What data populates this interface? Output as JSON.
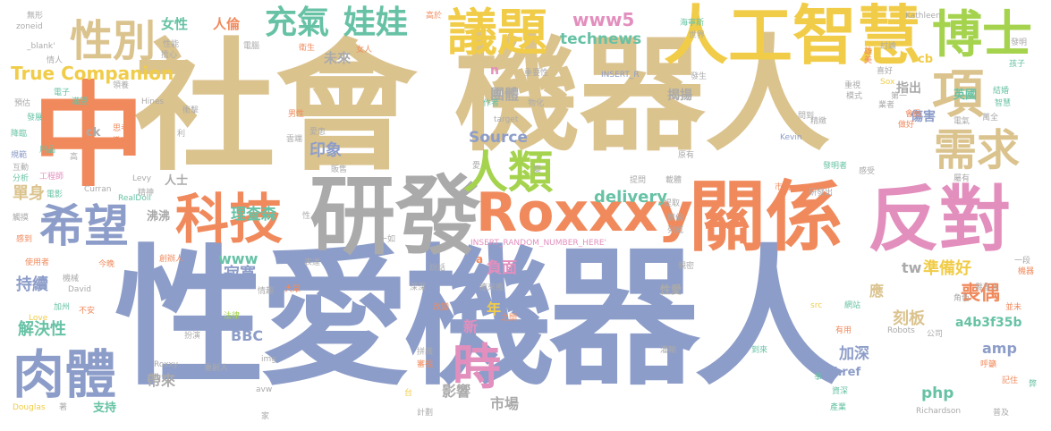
{
  "palette": {
    "tan": "#dbc38e",
    "orange": "#f08a5d",
    "blue": "#8d9dc9",
    "green": "#5cb891",
    "pink": "#e38fbe",
    "gray": "#aaaaaa",
    "yellow": "#f1cc48",
    "lime": "#a5d34e",
    "teal": "#67c2a5"
  },
  "words": [
    {
      "text": "性愛機器人",
      "color": "blue"
    },
    {
      "text": "社會",
      "color": "tan"
    },
    {
      "text": "機器人",
      "color": "tan"
    },
    {
      "text": "中",
      "color": "orange"
    },
    {
      "text": "研發",
      "color": "gray"
    },
    {
      "text": "關係",
      "color": "orange"
    },
    {
      "text": "反對",
      "color": "pink"
    },
    {
      "text": "人工智慧",
      "color": "yellow"
    },
    {
      "text": "Roxxxy",
      "color": "orange"
    },
    {
      "text": "科技",
      "color": "orange"
    },
    {
      "text": "肉體",
      "color": "blue"
    },
    {
      "text": "希望",
      "color": "blue"
    },
    {
      "text": "人類",
      "color": "lime"
    },
    {
      "text": "議題",
      "color": "yellow"
    },
    {
      "text": "博士",
      "color": "lime"
    },
    {
      "text": "需求",
      "color": "tan"
    },
    {
      "text": "性別",
      "color": "tan"
    },
    {
      "text": "充氣",
      "color": "teal"
    },
    {
      "text": "娃娃",
      "color": "teal"
    },
    {
      "text": "時",
      "color": "pink"
    },
    {
      "text": "項",
      "color": "tan"
    },
    {
      "text": "True Companion",
      "color": "yellow"
    },
    {
      "text": "www5",
      "color": "pink"
    },
    {
      "text": "technews",
      "color": "teal"
    },
    {
      "text": "Source",
      "color": "blue"
    },
    {
      "text": "印象",
      "color": "blue"
    },
    {
      "text": "單身",
      "color": "tan"
    },
    {
      "text": "寂寞",
      "color": "blue"
    },
    {
      "text": "理查森",
      "color": "teal"
    },
    {
      "text": "delivery",
      "color": "teal"
    },
    {
      "text": "解決性",
      "color": "teal"
    },
    {
      "text": "持續",
      "color": "blue"
    },
    {
      "text": "負面",
      "color": "pink"
    },
    {
      "text": "準備好",
      "color": "yellow"
    },
    {
      "text": "喪偶",
      "color": "orange"
    },
    {
      "text": "刻板",
      "color": "tan"
    },
    {
      "text": "amp",
      "color": "blue"
    },
    {
      "text": "加深",
      "color": "blue"
    },
    {
      "text": "影響",
      "color": "gray"
    },
    {
      "text": "市場",
      "color": "gray"
    },
    {
      "text": "php",
      "color": "teal"
    },
    {
      "text": "BBC",
      "color": "blue"
    },
    {
      "text": "帶來",
      "color": "gray"
    },
    {
      "text": "a4b3f35b",
      "color": "teal"
    },
    {
      "text": "www",
      "color": "teal"
    },
    {
      "text": "tw",
      "color": "gray"
    },
    {
      "text": "英國",
      "color": "teal"
    },
    {
      "text": "傷害",
      "color": "blue"
    },
    {
      "text": "團體",
      "color": "gray"
    },
    {
      "text": "指出",
      "color": "gray"
    },
    {
      "text": "未來",
      "color": "gray"
    },
    {
      "text": "女性",
      "color": "teal"
    },
    {
      "text": "人倫",
      "color": "orange"
    },
    {
      "text": "揭揚",
      "color": "gray"
    },
    {
      "text": "新",
      "color": "pink"
    },
    {
      "text": "年",
      "color": "yellow"
    },
    {
      "text": "應",
      "color": "tan"
    },
    {
      "text": "性愛",
      "color": "gray"
    },
    {
      "text": "href",
      "color": "blue"
    },
    {
      "text": "cb",
      "color": "yellow"
    },
    {
      "text": "沸沸",
      "color": "gray"
    },
    {
      "text": "人士",
      "color": "gray"
    },
    {
      "text": "ck",
      "color": "gray"
    },
    {
      "text": "支持",
      "color": "teal"
    },
    {
      "text": "n",
      "color": "pink"
    },
    {
      "text": "a",
      "color": "orange"
    },
    {
      "text": "Kathleen",
      "color": "gray"
    },
    {
      "text": "Richardson",
      "color": "gray"
    },
    {
      "text": "Douglas",
      "color": "yellow"
    },
    {
      "text": "David",
      "color": "gray"
    },
    {
      "text": "Levy",
      "color": "gray"
    },
    {
      "text": "Curran",
      "color": "gray"
    },
    {
      "text": "Hines",
      "color": "gray"
    },
    {
      "text": "RealDoll",
      "color": "teal"
    },
    {
      "text": "Roxxy",
      "color": "gray"
    },
    {
      "text": "Robots",
      "color": "gray"
    },
    {
      "text": "Love",
      "color": "yellow"
    },
    {
      "text": "Kevin",
      "color": "blue"
    },
    {
      "text": "Sox",
      "color": "yellow"
    },
    {
      "text": "target",
      "color": "gray"
    },
    {
      "text": "zoneid",
      "color": "gray"
    },
    {
      "text": "_blank'",
      "color": "gray"
    },
    {
      "text": "INSERT_R",
      "color": "blue"
    },
    {
      "text": "INSERT_RANDOM_NUMBER_HERE'",
      "color": "pink"
    },
    {
      "text": "img",
      "color": "gray"
    },
    {
      "text": "avw",
      "color": "gray"
    },
    {
      "text": "src",
      "color": "yellow"
    },
    {
      "text": "無形",
      "color": "gray"
    },
    {
      "text": "情人",
      "color": "gray"
    },
    {
      "text": "電子",
      "color": "teal"
    },
    {
      "text": "預估",
      "color": "gray"
    },
    {
      "text": "發展",
      "color": "teal"
    },
    {
      "text": "降臨",
      "color": "teal"
    },
    {
      "text": "規範",
      "color": "blue"
    },
    {
      "text": "互動",
      "color": "gray"
    },
    {
      "text": "分析",
      "color": "teal"
    },
    {
      "text": "工程師",
      "color": "pink"
    },
    {
      "text": "電影",
      "color": "teal"
    },
    {
      "text": "觸摸",
      "color": "gray"
    },
    {
      "text": "感到",
      "color": "orange"
    },
    {
      "text": "使用者",
      "color": "orange"
    },
    {
      "text": "機械",
      "color": "gray"
    },
    {
      "text": "加州",
      "color": "teal"
    },
    {
      "text": "不安",
      "color": "orange"
    },
    {
      "text": "今晚",
      "color": "orange"
    },
    {
      "text": "化",
      "color": "orange"
    },
    {
      "text": "用品",
      "color": "teal"
    },
    {
      "text": "滿望",
      "color": "teal"
    },
    {
      "text": "吵",
      "color": "orange"
    },
    {
      "text": "性能",
      "color": "gray"
    },
    {
      "text": "擔心",
      "color": "gray"
    },
    {
      "text": "電腦",
      "color": "gray"
    },
    {
      "text": "衛生",
      "color": "orange"
    },
    {
      "text": "女人",
      "color": "orange"
    },
    {
      "text": "重要性",
      "color": "gray"
    },
    {
      "text": "發生",
      "color": "gray"
    },
    {
      "text": "物化",
      "color": "gray"
    },
    {
      "text": "作者",
      "color": "teal"
    },
    {
      "text": "衝擊",
      "color": "gray"
    },
    {
      "text": "男性",
      "color": "orange"
    },
    {
      "text": "愛恵",
      "color": "gray"
    },
    {
      "text": "雲端",
      "color": "gray"
    },
    {
      "text": "提問",
      "color": "gray"
    },
    {
      "text": "載體",
      "color": "gray"
    },
    {
      "text": "市面",
      "color": "orange"
    },
    {
      "text": "研發出",
      "color": "gray"
    },
    {
      "text": "海寧斯",
      "color": "teal"
    },
    {
      "text": "世界",
      "color": "gray"
    },
    {
      "text": "高於",
      "color": "orange"
    },
    {
      "text": "討論",
      "color": "gray"
    },
    {
      "text": "孩子",
      "color": "teal"
    },
    {
      "text": "發明",
      "color": "gray"
    },
    {
      "text": "模式",
      "color": "gray"
    },
    {
      "text": "重視",
      "color": "gray"
    },
    {
      "text": "喜好",
      "color": "gray"
    },
    {
      "text": "業者",
      "color": "gray"
    },
    {
      "text": "第一",
      "color": "gray"
    },
    {
      "text": "結婚",
      "color": "teal"
    },
    {
      "text": "智慧",
      "color": "teal"
    },
    {
      "text": "問到",
      "color": "gray"
    },
    {
      "text": "精緻",
      "color": "gray"
    },
    {
      "text": "會員",
      "color": "orange"
    },
    {
      "text": "做好",
      "color": "orange"
    },
    {
      "text": "電氣",
      "color": "gray"
    },
    {
      "text": "萬全",
      "color": "gray"
    },
    {
      "text": "發明者",
      "color": "teal"
    },
    {
      "text": "感受",
      "color": "gray"
    },
    {
      "text": "屬有",
      "color": "gray"
    },
    {
      "text": "一段",
      "color": "gray"
    },
    {
      "text": "機器",
      "color": "orange"
    },
    {
      "text": "發言人",
      "color": "gray"
    },
    {
      "text": "角色",
      "color": "gray"
    },
    {
      "text": "並未",
      "color": "orange"
    },
    {
      "text": "公司",
      "color": "gray"
    },
    {
      "text": "網站",
      "color": "teal"
    },
    {
      "text": "有用",
      "color": "orange"
    },
    {
      "text": "到來",
      "color": "teal"
    },
    {
      "text": "灌輸",
      "color": "gray"
    },
    {
      "text": "呼籲",
      "color": "orange"
    },
    {
      "text": "記住",
      "color": "orange"
    },
    {
      "text": "弊",
      "color": "teal"
    },
    {
      "text": "資深",
      "color": "teal"
    },
    {
      "text": "產業",
      "color": "teal"
    },
    {
      "text": "普及",
      "color": "gray"
    },
    {
      "text": "事",
      "color": "teal"
    },
    {
      "text": "愛",
      "color": "gray"
    },
    {
      "text": "原有",
      "color": "gray"
    },
    {
      "text": "親密",
      "color": "gray"
    },
    {
      "text": "廣倫",
      "color": "gray"
    },
    {
      "text": "列威",
      "color": "gray"
    },
    {
      "text": "提取",
      "color": "gray"
    },
    {
      "text": "說話",
      "color": "gray"
    },
    {
      "text": "深深",
      "color": "gray"
    },
    {
      "text": "癒來癒",
      "color": "gray"
    },
    {
      "text": "之間",
      "color": "orange"
    },
    {
      "text": "改變",
      "color": "orange"
    },
    {
      "text": "拼識",
      "color": "gray"
    },
    {
      "text": "審視",
      "color": "orange"
    },
    {
      "text": "計劃",
      "color": "gray"
    },
    {
      "text": "台",
      "color": "yellow"
    },
    {
      "text": "法律",
      "color": "lime"
    },
    {
      "text": "扮演",
      "color": "gray"
    },
    {
      "text": "重創人",
      "color": "gray"
    },
    {
      "text": "情趣",
      "color": "gray"
    },
    {
      "text": "大眾",
      "color": "orange"
    },
    {
      "text": "表達",
      "color": "gray"
    },
    {
      "text": "一如",
      "color": "gray"
    },
    {
      "text": "創辦人",
      "color": "orange"
    },
    {
      "text": "精神",
      "color": "gray"
    },
    {
      "text": "性",
      "color": "gray"
    },
    {
      "text": "販售",
      "color": "gray"
    },
    {
      "text": "思考",
      "color": "orange"
    },
    {
      "text": "撤出",
      "color": "orange"
    },
    {
      "text": "領養",
      "color": "gray"
    },
    {
      "text": "利",
      "color": "gray"
    },
    {
      "text": "高",
      "color": "gray"
    },
    {
      "text": "著",
      "color": "gray"
    },
    {
      "text": "雄",
      "color": "orange"
    },
    {
      "text": "美",
      "color": "orange"
    },
    {
      "text": "家",
      "color": "gray"
    },
    {
      "text": "變",
      "color": "gray"
    }
  ]
}
